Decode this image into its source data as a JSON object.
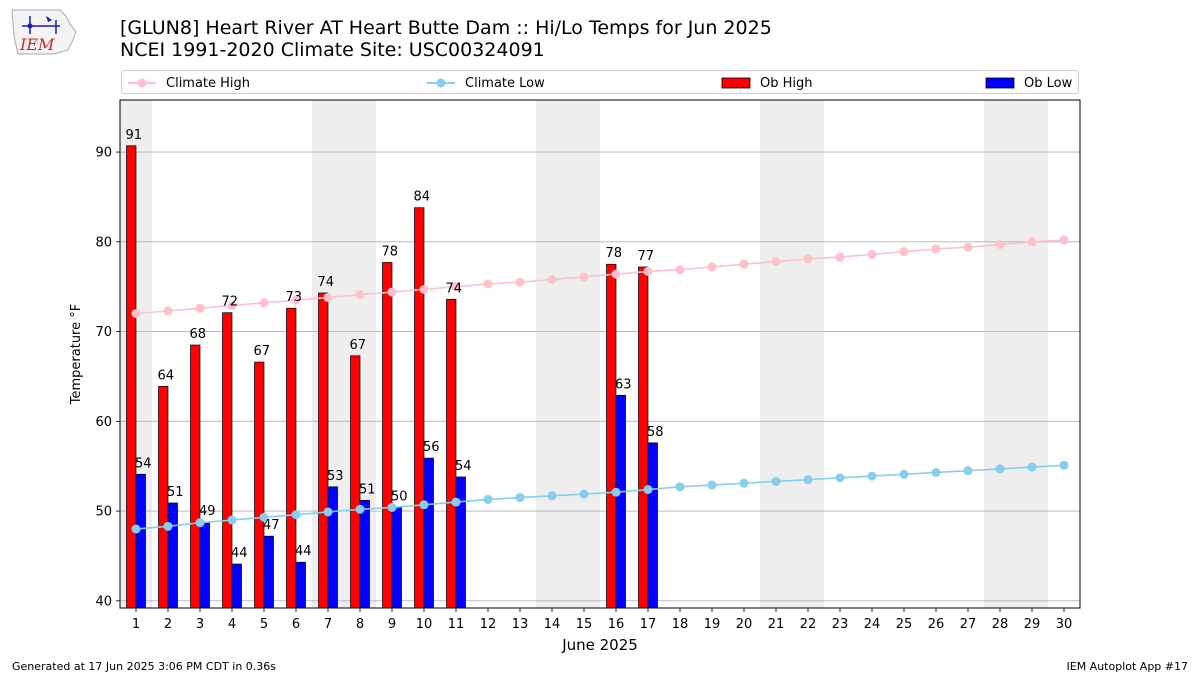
{
  "header": {
    "title_line1": "[GLUN8] Heart River  AT Heart Butte Dam :: Hi/Lo Temps for Jun 2025",
    "title_line2": "NCEI 1991-2020 Climate Site: USC00324091",
    "logo_text": "IEM"
  },
  "footer": {
    "generated": "Generated at 17 Jun 2025 3:06 PM CDT in 0.36s",
    "app": "IEM Autoplot App #17"
  },
  "legend": [
    {
      "label": "Climate High",
      "color": "#ffc0cb",
      "kind": "line"
    },
    {
      "label": "Climate Low",
      "color": "#87ceeb",
      "kind": "line"
    },
    {
      "label": "Ob High",
      "color": "#ff0000",
      "kind": "bar"
    },
    {
      "label": "Ob Low",
      "color": "#0000ff",
      "kind": "bar"
    }
  ],
  "chart_data": {
    "type": "bar",
    "xlabel": "June 2025",
    "ylabel": "Temperature °F",
    "ylim": [
      39.2,
      95.8
    ],
    "yticks": [
      40,
      50,
      60,
      70,
      80,
      90
    ],
    "days": [
      1,
      2,
      3,
      4,
      5,
      6,
      7,
      8,
      9,
      10,
      11,
      12,
      13,
      14,
      15,
      16,
      17,
      18,
      19,
      20,
      21,
      22,
      23,
      24,
      25,
      26,
      27,
      28,
      29,
      30
    ],
    "weekend_shading": [
      [
        1,
        1
      ],
      [
        7,
        8
      ],
      [
        14,
        15
      ],
      [
        21,
        22
      ],
      [
        28,
        29
      ]
    ],
    "grid": "horizontal",
    "series": [
      {
        "name": "Ob High",
        "color": "#ff0000",
        "days": [
          1,
          2,
          3,
          4,
          5,
          6,
          7,
          8,
          9,
          10,
          11,
          16,
          17
        ],
        "values": [
          91,
          64,
          68,
          72,
          67,
          73,
          74,
          67,
          78,
          84,
          74,
          78,
          77
        ],
        "heights": [
          90.7,
          63.9,
          68.5,
          72.1,
          66.6,
          72.6,
          74.3,
          67.3,
          77.7,
          83.8,
          73.6,
          77.5,
          77.2
        ]
      },
      {
        "name": "Ob Low",
        "color": "#0000ff",
        "days": [
          1,
          2,
          3,
          4,
          5,
          6,
          7,
          8,
          9,
          10,
          11,
          16,
          17
        ],
        "values": [
          54,
          51,
          49,
          44,
          47,
          44,
          53,
          51,
          50,
          56,
          54,
          63,
          58
        ],
        "heights": [
          54.1,
          50.9,
          48.8,
          44.1,
          47.2,
          44.3,
          52.7,
          51.2,
          50.4,
          55.9,
          53.8,
          62.9,
          57.6
        ]
      },
      {
        "name": "Climate High",
        "color": "#ffc0cb",
        "kind": "line",
        "values": [
          72.0,
          72.3,
          72.6,
          72.9,
          73.2,
          73.5,
          73.8,
          74.1,
          74.4,
          74.7,
          75.0,
          75.3,
          75.5,
          75.8,
          76.1,
          76.4,
          76.7,
          76.9,
          77.2,
          77.5,
          77.8,
          78.1,
          78.3,
          78.6,
          78.9,
          79.2,
          79.4,
          79.7,
          80.0,
          80.2
        ]
      },
      {
        "name": "Climate Low",
        "color": "#87ceeb",
        "kind": "line",
        "values": [
          48.0,
          48.3,
          48.7,
          49.0,
          49.3,
          49.6,
          49.9,
          50.2,
          50.4,
          50.7,
          51.0,
          51.3,
          51.5,
          51.7,
          51.9,
          52.1,
          52.4,
          52.7,
          52.9,
          53.1,
          53.3,
          53.5,
          53.7,
          53.9,
          54.1,
          54.3,
          54.5,
          54.7,
          54.9,
          55.1
        ]
      }
    ]
  }
}
